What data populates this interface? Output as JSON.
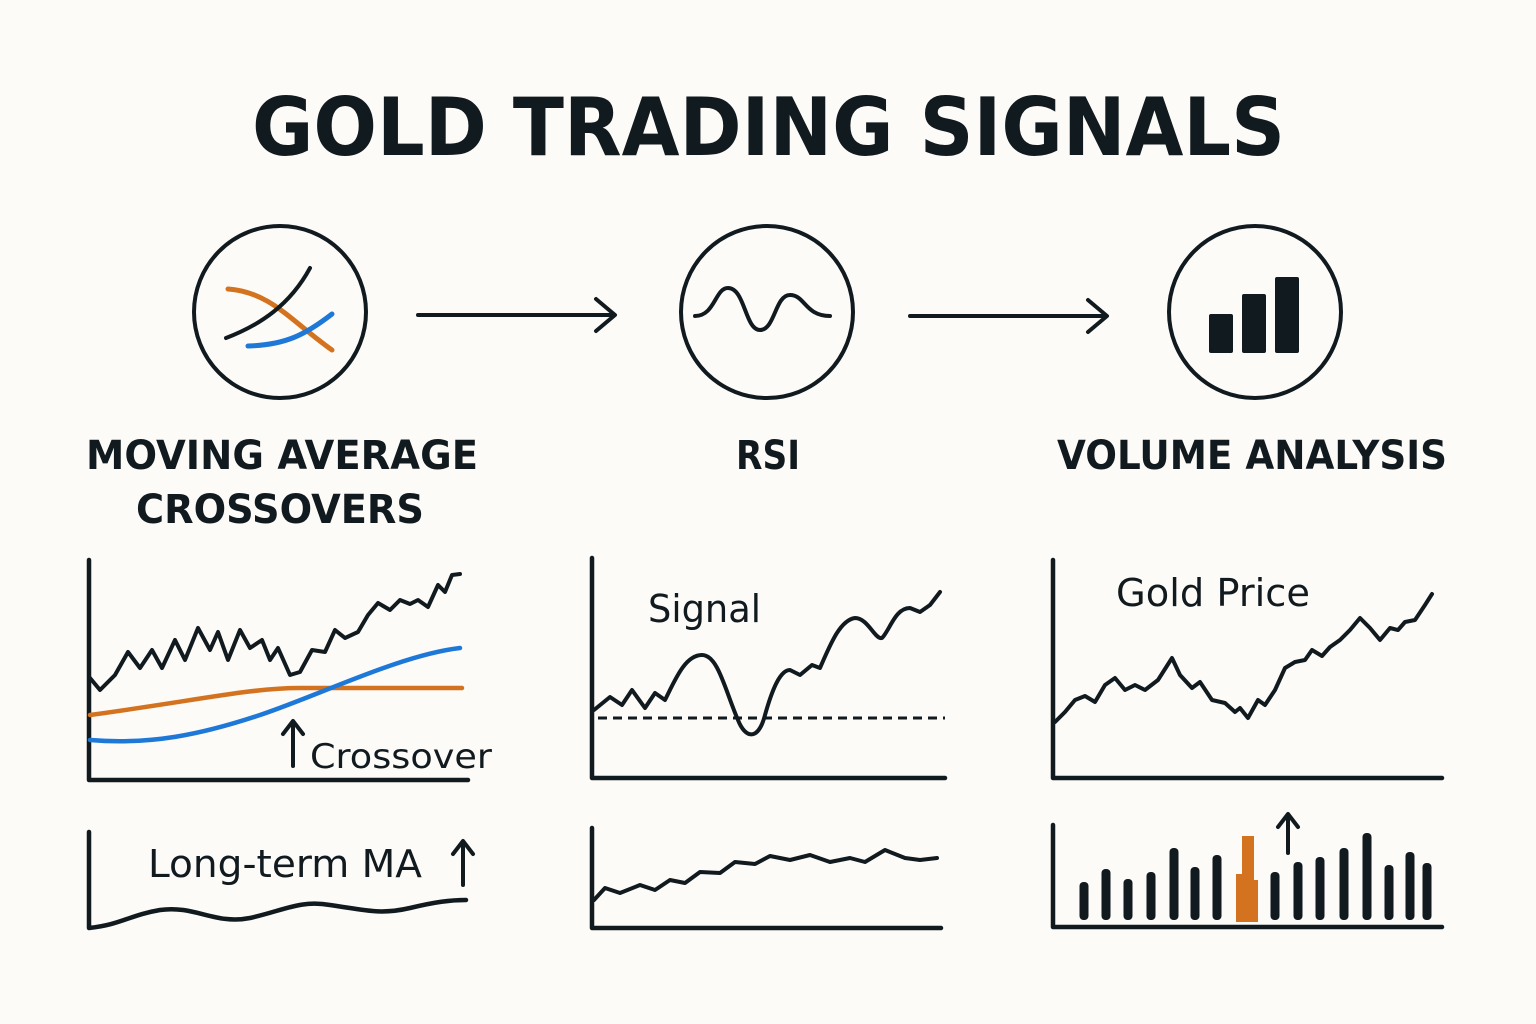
{
  "title": "GOLD TRADING SIGNALS",
  "colors": {
    "ink": "#111a1f",
    "orange": "#d4731f",
    "blue": "#1e78d8",
    "background": "#fcfbf7"
  },
  "steps": [
    {
      "icon": "crossover-lines-icon",
      "label_lines": [
        "MOVING AVERAGE",
        "CROSSOVERS"
      ]
    },
    {
      "icon": "oscillator-wave-icon",
      "label_lines": [
        "RSI"
      ]
    },
    {
      "icon": "bar-chart-icon",
      "label_lines": [
        "VOLUME ANALYSIS"
      ]
    }
  ],
  "panels": {
    "ma": {
      "annotation": "Crossover",
      "lower_annotation": "Long-term MA"
    },
    "rsi": {
      "annotation": "Signal"
    },
    "volume": {
      "annotation": "Gold Price"
    }
  }
}
